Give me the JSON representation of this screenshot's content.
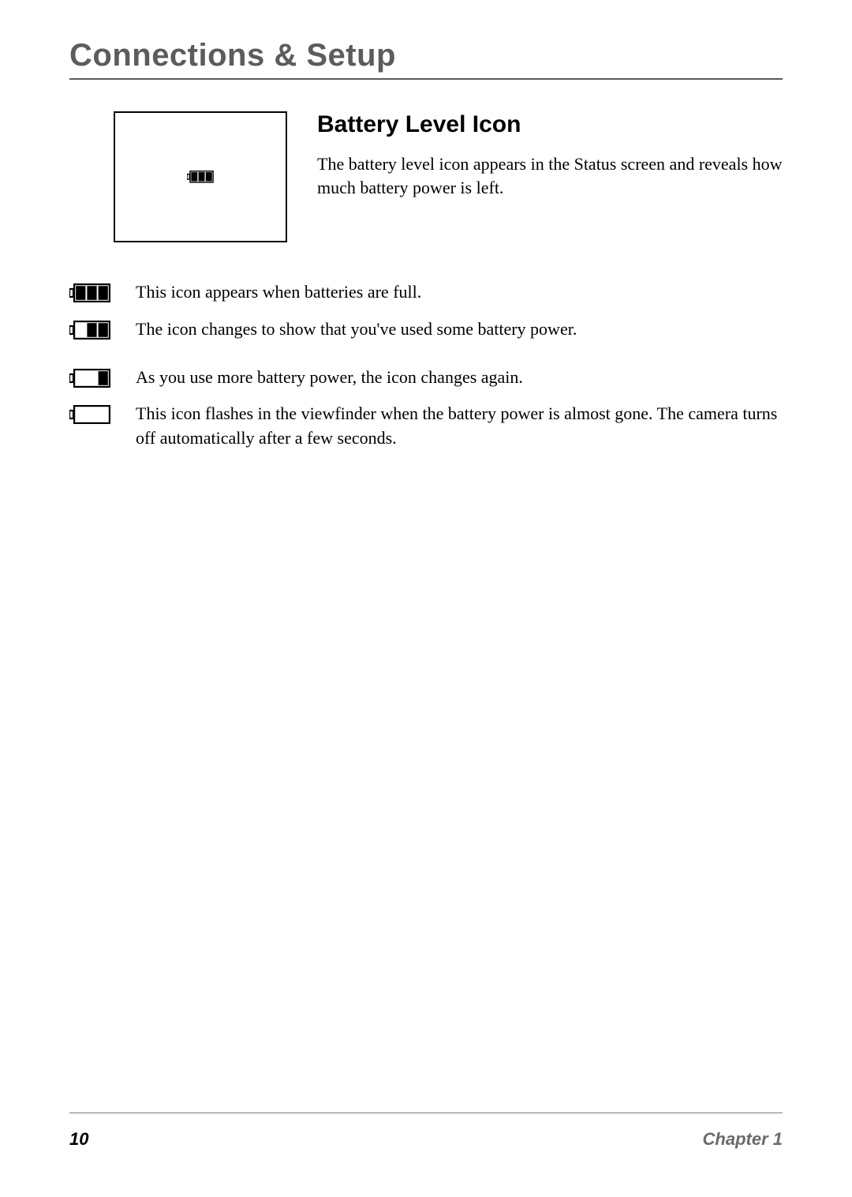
{
  "header": {
    "title": "Connections & Setup"
  },
  "section": {
    "heading": "Battery Level Icon",
    "intro": "The battery level icon appears in the Status screen and reveals how much battery power is left."
  },
  "screen_icon": {
    "bars": 3,
    "total_bars": 3,
    "stroke": "#000000",
    "fill_bar": "#000000",
    "scale": 0.65
  },
  "levels": [
    {
      "bars": 3,
      "desc": "This icon appears when batteries are full."
    },
    {
      "bars": 2,
      "desc": "The icon changes to show that you've used some battery power.",
      "gap_after": true
    },
    {
      "bars": 1,
      "desc": "As you use more battery power, the icon changes again."
    },
    {
      "bars": 0,
      "desc": "This icon flashes in the viewfinder when the battery power is almost gone. The camera turns off automatically after a few seconds."
    }
  ],
  "battery_icon_style": {
    "width": 52,
    "height": 24,
    "stroke": "#000000",
    "stroke_width": 2.2,
    "bar_fill": "#000000",
    "bar_gap": 2,
    "bar_count_max": 3,
    "tip_width": 5,
    "tip_height": 10
  },
  "footer": {
    "page_number": "10",
    "chapter": "Chapter 1"
  }
}
